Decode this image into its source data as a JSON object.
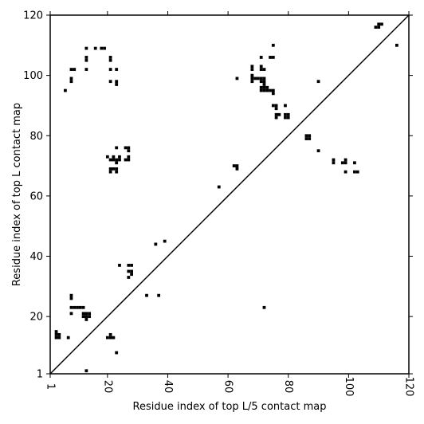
{
  "chart_data": {
    "type": "scatter",
    "xlabel": "Residue index of top L/5 contact map",
    "ylabel": "Residue index of top L contact map",
    "xlim": [
      1,
      120
    ],
    "ylim": [
      1,
      120
    ],
    "xticks": [
      1,
      20,
      40,
      60,
      80,
      100,
      120
    ],
    "yticks": [
      1,
      20,
      40,
      60,
      80,
      100,
      120
    ],
    "diagonal": true,
    "marker_color": "#000000",
    "grid": false,
    "points_below_diagonal": [
      [
        3,
        13
      ],
      [
        3,
        14
      ],
      [
        3,
        15
      ],
      [
        4,
        13
      ],
      [
        4,
        14
      ],
      [
        7,
        13
      ],
      [
        8,
        21
      ],
      [
        8,
        23
      ],
      [
        8,
        26
      ],
      [
        8,
        27
      ],
      [
        9,
        23
      ],
      [
        10,
        23
      ],
      [
        11,
        23
      ],
      [
        12,
        23
      ],
      [
        12,
        20
      ],
      [
        12,
        21
      ],
      [
        13,
        19
      ],
      [
        13,
        20
      ],
      [
        13,
        21
      ],
      [
        14,
        20
      ],
      [
        14,
        21
      ],
      [
        13,
        2
      ],
      [
        20,
        13
      ],
      [
        21,
        13
      ],
      [
        21,
        14
      ],
      [
        22,
        13
      ],
      [
        23,
        8
      ],
      [
        24,
        37
      ],
      [
        27,
        33
      ],
      [
        27,
        35
      ],
      [
        27,
        37
      ],
      [
        28,
        34
      ],
      [
        28,
        35
      ],
      [
        28,
        37
      ],
      [
        33,
        27
      ],
      [
        36,
        44
      ],
      [
        37,
        27
      ],
      [
        39,
        45
      ],
      [
        72,
        23
      ],
      [
        57,
        63
      ],
      [
        62,
        70
      ],
      [
        63,
        69
      ],
      [
        63,
        70
      ],
      [
        86,
        79
      ],
      [
        86,
        80
      ],
      [
        87,
        79
      ],
      [
        87,
        80
      ],
      [
        90,
        75
      ],
      [
        95,
        71
      ],
      [
        95,
        72
      ],
      [
        98,
        71
      ],
      [
        99,
        71
      ],
      [
        99,
        72
      ],
      [
        99,
        68
      ],
      [
        102,
        71
      ],
      [
        102,
        68
      ],
      [
        103,
        68
      ]
    ],
    "points_above_diagonal": [
      [
        6,
        95
      ],
      [
        8,
        98
      ],
      [
        8,
        99
      ],
      [
        8,
        102
      ],
      [
        9,
        102
      ],
      [
        13,
        102
      ],
      [
        13,
        105
      ],
      [
        13,
        106
      ],
      [
        13,
        109
      ],
      [
        16,
        109
      ],
      [
        18,
        109
      ],
      [
        19,
        109
      ],
      [
        21,
        98
      ],
      [
        21,
        102
      ],
      [
        21,
        105
      ],
      [
        21,
        106
      ],
      [
        23,
        97
      ],
      [
        23,
        98
      ],
      [
        23,
        102
      ],
      [
        20,
        73
      ],
      [
        21,
        68
      ],
      [
        21,
        69
      ],
      [
        21,
        72
      ],
      [
        22,
        69
      ],
      [
        22,
        72
      ],
      [
        22,
        73
      ],
      [
        23,
        68
      ],
      [
        23,
        69
      ],
      [
        23,
        71
      ],
      [
        23,
        72
      ],
      [
        23,
        76
      ],
      [
        24,
        72
      ],
      [
        24,
        73
      ],
      [
        26,
        72
      ],
      [
        26,
        76
      ],
      [
        27,
        72
      ],
      [
        27,
        73
      ],
      [
        27,
        75
      ],
      [
        27,
        76
      ],
      [
        63,
        99
      ],
      [
        68,
        98
      ],
      [
        68,
        99
      ],
      [
        68,
        100
      ],
      [
        68,
        102
      ],
      [
        68,
        103
      ],
      [
        69,
        99
      ],
      [
        70,
        99
      ],
      [
        71,
        95
      ],
      [
        71,
        96
      ],
      [
        71,
        98
      ],
      [
        71,
        99
      ],
      [
        71,
        102
      ],
      [
        71,
        103
      ],
      [
        71,
        106
      ],
      [
        72,
        95
      ],
      [
        72,
        96
      ],
      [
        72,
        97
      ],
      [
        72,
        98
      ],
      [
        72,
        99
      ],
      [
        72,
        102
      ],
      [
        73,
        95
      ],
      [
        73,
        96
      ],
      [
        74,
        95
      ],
      [
        74,
        106
      ],
      [
        75,
        90
      ],
      [
        75,
        94
      ],
      [
        75,
        95
      ],
      [
        75,
        106
      ],
      [
        75,
        110
      ],
      [
        76,
        86
      ],
      [
        76,
        87
      ],
      [
        76,
        89
      ],
      [
        76,
        90
      ],
      [
        77,
        87
      ],
      [
        79,
        86
      ],
      [
        79,
        87
      ],
      [
        79,
        90
      ],
      [
        80,
        86
      ],
      [
        80,
        87
      ],
      [
        90,
        98
      ],
      [
        109,
        116
      ],
      [
        110,
        116
      ],
      [
        110,
        117
      ],
      [
        111,
        117
      ],
      [
        116,
        110
      ]
    ]
  }
}
